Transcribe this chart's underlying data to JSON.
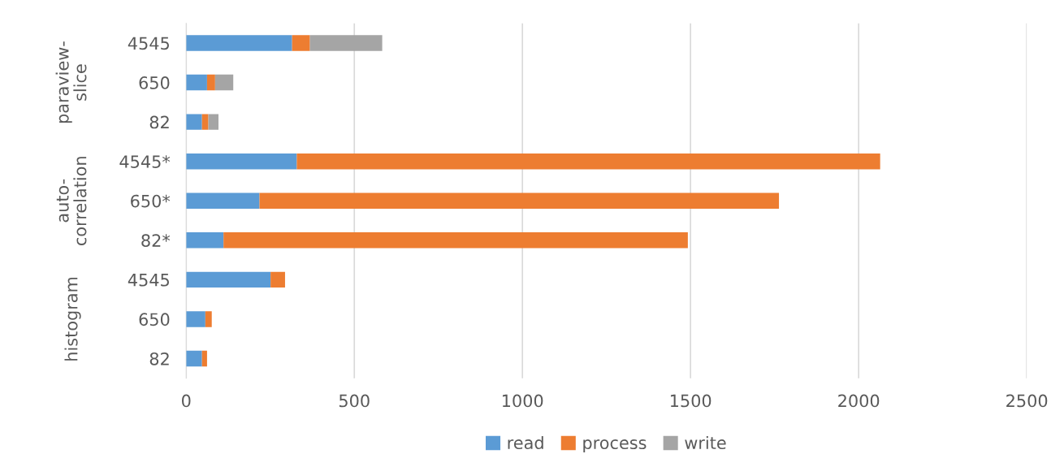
{
  "chart_data": {
    "type": "bar",
    "orientation": "horizontal",
    "stacked": true,
    "categories": [
      "4545",
      "650",
      "82",
      "4545*",
      "650*",
      "82*",
      "4545",
      "650",
      "82"
    ],
    "annotations": [
      "paraview-\nslice",
      "auto-\ncorrelation",
      "histogram"
    ],
    "series": [
      {
        "name": "read",
        "color": "#5b9bd5",
        "values": [
          315,
          62,
          47,
          329,
          218,
          111,
          251,
          57,
          47
        ]
      },
      {
        "name": "process",
        "color": "#ed7d31",
        "values": [
          53,
          24,
          19,
          1735,
          1545,
          1381,
          43,
          19,
          15
        ]
      },
      {
        "name": "write",
        "color": "#a5a5a5",
        "values": [
          215,
          54,
          30,
          null,
          null,
          null,
          null,
          null,
          null
        ]
      }
    ],
    "xlim": [
      0,
      2500
    ],
    "xticks": [
      0,
      500,
      1000,
      1500,
      2000,
      2500
    ],
    "grid": "x",
    "legend": "bottom"
  }
}
